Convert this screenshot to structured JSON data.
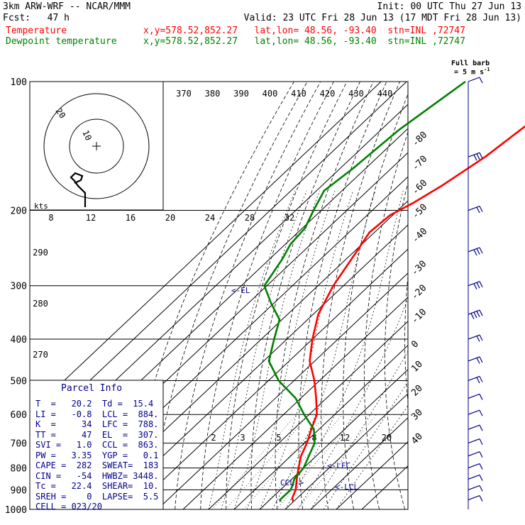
{
  "header": {
    "line1_left": "3km ARW-WRF -- NCAR/MMM",
    "line1_right": "Init: 00 UTC Thu 27 Jun 13",
    "line2_left": "Fcst:   47 h",
    "line2_right": "Valid: 23 UTC Fri 28 Jun 13 (17 MDT Fri 28 Jun 13)",
    "temp_label": "Temperature",
    "temp_info": "x,y=578.52,852.27   lat,lon= 48.56, -93.40  stn=INL ,72747",
    "dew_label": "Dewpoint temperature",
    "dew_info": "x,y=578.52,852.27   lat,lon= 48.56, -93.40  stn=INL ,72747",
    "full_barb": "Full barb",
    "full_barb_unit": "= 5 m s",
    "full_barb_exp": "-1"
  },
  "colors": {
    "temperature": "#ff0000",
    "dewpoint": "#008000",
    "wind": "#00008b",
    "grid": "#000000"
  },
  "parcel_info": {
    "title": "Parcel Info",
    "rows": [
      "T  =   20.2  Td =  15.4",
      "LI =   -0.8  LCL =  884.",
      "K  =     34  LFC =  788.",
      "TT =     47  EL  =  307.",
      "SVI =   1.0  CCL =  863.",
      "PW =   3.35  YGP =   0.1",
      "CAPE =  282  SWEAT=  183",
      "CIN =   -54  HWBZ= 3448.",
      "Tc =   22.4  SHEAR=  10.",
      "SREH =    0  LAPSE=  5.5",
      "CELL = 023/20"
    ]
  },
  "annotations": {
    "el": "<-EL",
    "lfc": "<-LFC",
    "lcl": "<-LCL",
    "ccl": "CCL->"
  },
  "hodograph": {
    "rings": [
      "10",
      "20"
    ],
    "units": "kts"
  },
  "chart_data": {
    "type": "line",
    "title": "",
    "pressure_ticks": [
      100,
      200,
      300,
      400,
      500,
      600,
      700,
      800,
      900,
      1000
    ],
    "temperature_ticks_top": [
      -80,
      -70,
      -60,
      -50,
      -40
    ],
    "temperature_ticks_right": [
      -30,
      -20,
      -10,
      0,
      10,
      20,
      30,
      40
    ],
    "theta_labels": [
      370,
      380,
      390,
      400,
      410,
      420,
      430,
      440
    ],
    "theta_labels_left": [
      290,
      280,
      270
    ],
    "mixing_ratio_labels_upper": [
      8,
      12,
      16,
      20,
      24,
      28,
      32
    ],
    "mixing_ratio_labels_lower": [
      2,
      3,
      5,
      8,
      12,
      20
    ],
    "pressure_range": [
      100,
      1000
    ],
    "series": [
      {
        "name": "Temperature",
        "x": [
          -40,
          -44,
          -48,
          -53,
          -57,
          -61,
          -62,
          -59,
          -54,
          -48,
          -40,
          -32,
          -22,
          -14,
          -7,
          -3,
          1,
          4,
          8,
          12,
          16,
          18,
          20
        ],
        "y": [
          100,
          120,
          150,
          175,
          192,
          205,
          225,
          250,
          300,
          350,
          400,
          450,
          500,
          550,
          600,
          650,
          700,
          750,
          800,
          850,
          900,
          940,
          960
        ]
      },
      {
        "name": "Dewpoint temperature",
        "x": [
          -87,
          -93,
          -95,
          -97,
          -93,
          -89,
          -88,
          -85,
          -81,
          -71,
          -61,
          -55,
          -48,
          -36,
          -22,
          -12,
          -2,
          4,
          10,
          11,
          13,
          14,
          14,
          15
        ],
        "y": [
          100,
          130,
          160,
          180,
          200,
          220,
          240,
          260,
          300,
          330,
          360,
          400,
          450,
          500,
          550,
          600,
          650,
          700,
          800,
          850,
          880,
          900,
          950,
          960
        ]
      }
    ],
    "wind_barbs": {
      "levels_hPa": [
        100,
        150,
        200,
        250,
        300,
        350,
        400,
        450,
        500,
        550,
        600,
        650,
        700,
        750,
        800,
        850,
        900,
        950
      ],
      "speed_ms": [
        5,
        15,
        10,
        15,
        15,
        20,
        10,
        10,
        10,
        5,
        5,
        5,
        5,
        5,
        5,
        5,
        5,
        5
      ],
      "direction_deg": [
        270,
        270,
        270,
        260,
        260,
        260,
        250,
        250,
        250,
        240,
        230,
        220,
        210,
        200,
        190,
        180,
        170,
        160
      ]
    }
  }
}
